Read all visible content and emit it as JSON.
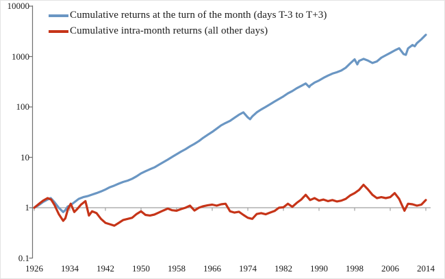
{
  "figure": {
    "background": "#ffffff",
    "text_color": "#1a1a1a",
    "axis_color": "#6e6e6e",
    "baseline_color": "#a0a0a0"
  },
  "chart_data": {
    "type": "line",
    "title": "",
    "xlabel": "",
    "ylabel": "",
    "grid": "off",
    "legend_position": "top-left-inside",
    "x_axis": {
      "min": 1926,
      "max": 2014,
      "ticks": [
        1926,
        1934,
        1942,
        1950,
        1958,
        1966,
        1974,
        1982,
        1990,
        1998,
        2006,
        2014
      ],
      "label_position": "low"
    },
    "y_axis": {
      "scale": "log10",
      "min": 0.1,
      "max": 10000,
      "tick_labels": [
        "10000",
        "1000",
        "100",
        "10",
        "1",
        "0.1"
      ]
    },
    "baseline_value": 1,
    "series": [
      {
        "name": "Cumulative returns at the turn of the month (days T-3 to T+3)",
        "color": "#6a96c3",
        "points": [
          [
            1926,
            1.0
          ],
          [
            1927,
            1.12
          ],
          [
            1928,
            1.3
          ],
          [
            1929,
            1.45
          ],
          [
            1929.7,
            1.55
          ],
          [
            1930.5,
            1.3
          ],
          [
            1931.5,
            1.0
          ],
          [
            1932.5,
            0.82
          ],
          [
            1933,
            0.9
          ],
          [
            1933.5,
            1.05
          ],
          [
            1934,
            1.1
          ],
          [
            1935,
            1.28
          ],
          [
            1936,
            1.5
          ],
          [
            1937,
            1.62
          ],
          [
            1938,
            1.7
          ],
          [
            1939,
            1.82
          ],
          [
            1940,
            1.95
          ],
          [
            1941,
            2.1
          ],
          [
            1942,
            2.3
          ],
          [
            1943,
            2.55
          ],
          [
            1944,
            2.75
          ],
          [
            1945,
            3.0
          ],
          [
            1946,
            3.25
          ],
          [
            1947,
            3.45
          ],
          [
            1948,
            3.75
          ],
          [
            1949,
            4.2
          ],
          [
            1950,
            4.8
          ],
          [
            1951,
            5.3
          ],
          [
            1952,
            5.8
          ],
          [
            1953,
            6.3
          ],
          [
            1954,
            7.1
          ],
          [
            1955,
            8.0
          ],
          [
            1956,
            9.0
          ],
          [
            1957,
            10.2
          ],
          [
            1958,
            11.5
          ],
          [
            1959,
            13
          ],
          [
            1960,
            14.5
          ],
          [
            1961,
            16.5
          ],
          [
            1962,
            18.5
          ],
          [
            1963,
            21
          ],
          [
            1964,
            24.5
          ],
          [
            1965,
            28
          ],
          [
            1966,
            32
          ],
          [
            1967,
            37
          ],
          [
            1968,
            43
          ],
          [
            1969,
            48
          ],
          [
            1970,
            53
          ],
          [
            1971,
            61
          ],
          [
            1972,
            70
          ],
          [
            1973,
            78
          ],
          [
            1974,
            62
          ],
          [
            1974.5,
            57
          ],
          [
            1975,
            65
          ],
          [
            1976,
            78
          ],
          [
            1977,
            89
          ],
          [
            1978,
            100
          ],
          [
            1979,
            113
          ],
          [
            1980,
            128
          ],
          [
            1981,
            144
          ],
          [
            1982,
            162
          ],
          [
            1983,
            186
          ],
          [
            1984,
            207
          ],
          [
            1985,
            235
          ],
          [
            1986,
            262
          ],
          [
            1987,
            292
          ],
          [
            1987.8,
            248
          ],
          [
            1988,
            265
          ],
          [
            1989,
            305
          ],
          [
            1990,
            335
          ],
          [
            1991,
            378
          ],
          [
            1992,
            418
          ],
          [
            1993,
            458
          ],
          [
            1994,
            488
          ],
          [
            1995,
            528
          ],
          [
            1996,
            600
          ],
          [
            1997,
            730
          ],
          [
            1998,
            880
          ],
          [
            1998.6,
            700
          ],
          [
            1999,
            820
          ],
          [
            2000,
            900
          ],
          [
            2001,
            830
          ],
          [
            2002,
            745
          ],
          [
            2003,
            800
          ],
          [
            2004,
            950
          ],
          [
            2005,
            1060
          ],
          [
            2006,
            1180
          ],
          [
            2007,
            1320
          ],
          [
            2008,
            1460
          ],
          [
            2009,
            1120
          ],
          [
            2009.5,
            1080
          ],
          [
            2010,
            1450
          ],
          [
            2011,
            1700
          ],
          [
            2011.5,
            1600
          ],
          [
            2012,
            1850
          ],
          [
            2013,
            2200
          ],
          [
            2014,
            2700
          ]
        ]
      },
      {
        "name": "Cumulative intra-month returns (all other days)",
        "color": "#c63418",
        "points": [
          [
            1926,
            1.0
          ],
          [
            1927,
            1.18
          ],
          [
            1928,
            1.38
          ],
          [
            1929,
            1.55
          ],
          [
            1929.8,
            1.45
          ],
          [
            1930.5,
            1.15
          ],
          [
            1931.5,
            0.75
          ],
          [
            1932.5,
            0.55
          ],
          [
            1933,
            0.62
          ],
          [
            1933.6,
            0.95
          ],
          [
            1934.2,
            1.2
          ],
          [
            1935,
            0.82
          ],
          [
            1935.7,
            0.95
          ],
          [
            1936.5,
            1.15
          ],
          [
            1937.5,
            1.35
          ],
          [
            1938.3,
            0.7
          ],
          [
            1939,
            0.85
          ],
          [
            1940,
            0.78
          ],
          [
            1941,
            0.6
          ],
          [
            1942,
            0.5
          ],
          [
            1943,
            0.47
          ],
          [
            1944,
            0.44
          ],
          [
            1945,
            0.5
          ],
          [
            1946,
            0.57
          ],
          [
            1947,
            0.6
          ],
          [
            1948,
            0.63
          ],
          [
            1949,
            0.75
          ],
          [
            1950,
            0.85
          ],
          [
            1951,
            0.72
          ],
          [
            1952,
            0.7
          ],
          [
            1953,
            0.73
          ],
          [
            1954,
            0.8
          ],
          [
            1955,
            0.88
          ],
          [
            1956,
            0.96
          ],
          [
            1957,
            0.89
          ],
          [
            1958,
            0.87
          ],
          [
            1959,
            0.94
          ],
          [
            1960,
            1.0
          ],
          [
            1961,
            1.1
          ],
          [
            1962,
            0.88
          ],
          [
            1963,
            1.0
          ],
          [
            1964,
            1.07
          ],
          [
            1965,
            1.12
          ],
          [
            1966,
            1.15
          ],
          [
            1967,
            1.1
          ],
          [
            1968,
            1.17
          ],
          [
            1969,
            1.2
          ],
          [
            1970,
            0.85
          ],
          [
            1971,
            0.8
          ],
          [
            1972,
            0.83
          ],
          [
            1973,
            0.72
          ],
          [
            1974,
            0.63
          ],
          [
            1975,
            0.6
          ],
          [
            1976,
            0.75
          ],
          [
            1977,
            0.78
          ],
          [
            1978,
            0.74
          ],
          [
            1979,
            0.8
          ],
          [
            1980,
            0.86
          ],
          [
            1981,
            1.0
          ],
          [
            1982,
            1.02
          ],
          [
            1983,
            1.2
          ],
          [
            1984,
            1.04
          ],
          [
            1985,
            1.25
          ],
          [
            1986,
            1.45
          ],
          [
            1987,
            1.8
          ],
          [
            1988,
            1.42
          ],
          [
            1989,
            1.55
          ],
          [
            1990,
            1.38
          ],
          [
            1991,
            1.45
          ],
          [
            1992,
            1.35
          ],
          [
            1993,
            1.42
          ],
          [
            1994,
            1.33
          ],
          [
            1995,
            1.38
          ],
          [
            1996,
            1.5
          ],
          [
            1997,
            1.75
          ],
          [
            1998,
            1.95
          ],
          [
            1999,
            2.25
          ],
          [
            2000,
            2.85
          ],
          [
            2001,
            2.3
          ],
          [
            2002,
            1.8
          ],
          [
            2003,
            1.55
          ],
          [
            2004,
            1.62
          ],
          [
            2005,
            1.55
          ],
          [
            2006,
            1.62
          ],
          [
            2007,
            1.95
          ],
          [
            2008,
            1.5
          ],
          [
            2009.2,
            0.87
          ],
          [
            2010,
            1.2
          ],
          [
            2011,
            1.17
          ],
          [
            2012,
            1.1
          ],
          [
            2013,
            1.15
          ],
          [
            2014,
            1.42
          ]
        ]
      }
    ]
  }
}
